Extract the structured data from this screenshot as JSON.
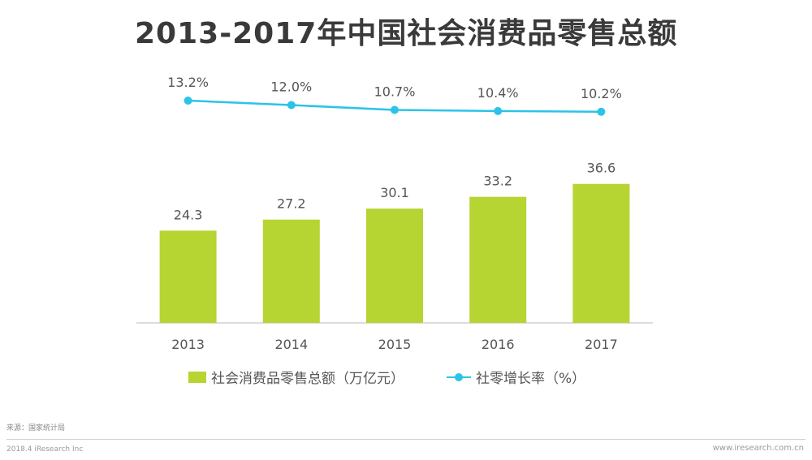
{
  "title": "2013-2017年中国社会消费品零售总额",
  "colors": {
    "bar": "#b6d432",
    "line": "#2bc3e8",
    "axis": "#d0d0d0",
    "text": "#555555"
  },
  "chart_data": {
    "type": "bar",
    "title": "2013-2017年中国社会消费品零售总额",
    "categories": [
      "2013",
      "2014",
      "2015",
      "2016",
      "2017"
    ],
    "series": [
      {
        "name": "社会消费品零售总额（万亿元）",
        "type": "bar",
        "values": [
          24.3,
          27.2,
          30.1,
          33.2,
          36.6
        ]
      },
      {
        "name": "社零增长率（%）",
        "type": "line",
        "values": [
          13.2,
          12.0,
          10.7,
          10.4,
          10.2
        ]
      }
    ],
    "bar_labels": [
      "24.3",
      "27.2",
      "30.1",
      "33.2",
      "36.6"
    ],
    "line_labels": [
      "13.2%",
      "12.0%",
      "10.7%",
      "10.4%",
      "10.2%"
    ],
    "legend_position": "bottom",
    "grid": false
  },
  "legend": {
    "bar_label": "社会消费品零售总额（万亿元）",
    "line_label": "社零增长率（%）"
  },
  "source": "来源：国家统计局",
  "footer": {
    "left": "2018.4 iResearch Inc",
    "right": "www.iresearch.com.cn"
  }
}
